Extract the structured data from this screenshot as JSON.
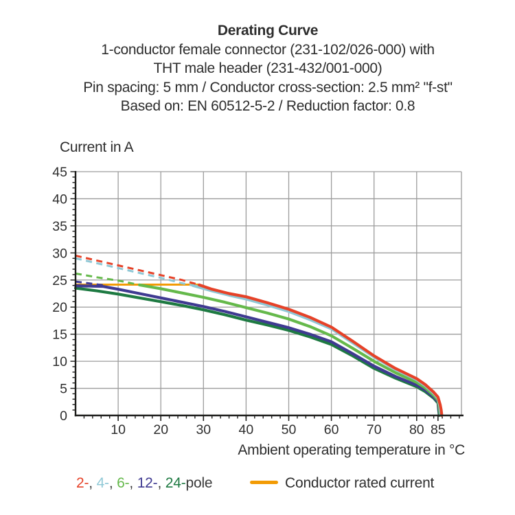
{
  "header": {
    "title": "Derating Curve",
    "subtitle_lines": [
      "1-conductor female connector (231-102/026-000) with",
      "THT male header (231-432/001-000)",
      "Pin spacing: 5 mm / Conductor cross-section: 2.5 mm² \"f-st\"",
      "Based on: EN 60512-5-2 / Reduction factor: 0.8"
    ]
  },
  "chart_data": {
    "type": "line",
    "title": "Derating Curve",
    "ylabel": "Current in A",
    "xlabel": "Ambient operating temperature in °C",
    "xlim": [
      0,
      90.5
    ],
    "ylim": [
      0,
      45
    ],
    "grid": true,
    "grid_color": "#9c9c9c",
    "axis_color": "#1d1d1b",
    "tick_label_color": "#2e2e2e",
    "x_major_ticks": [
      10,
      20,
      30,
      40,
      50,
      60,
      70,
      80,
      85
    ],
    "x_gridlines": [
      10,
      20,
      30,
      40,
      50,
      60,
      70,
      80
    ],
    "x_minor_step": 2,
    "y_major_ticks": [
      0,
      5,
      10,
      15,
      20,
      25,
      30,
      35,
      40,
      45
    ],
    "y_minor_step": 1,
    "legend_position": "bottom",
    "note": "dashed segments show curve portion above conductor rated current; solid below",
    "rated_current_line": {
      "name": "Conductor rated current",
      "color": "#f29b05",
      "value_A": 24.1,
      "points": [
        [
          0,
          24.15
        ],
        [
          29,
          24.15
        ]
      ]
    },
    "series": [
      {
        "name": "2-pole",
        "color": "#e64228",
        "dashed_points": [
          [
            0,
            29.5
          ],
          [
            5,
            28.6
          ],
          [
            10,
            27.7
          ],
          [
            15,
            26.8
          ],
          [
            20,
            25.9
          ],
          [
            25,
            25.0
          ],
          [
            29,
            24.1
          ]
        ],
        "solid_points": [
          [
            29,
            24.1
          ],
          [
            32,
            23.3
          ],
          [
            36,
            22.5
          ],
          [
            40,
            21.9
          ],
          [
            45,
            20.8
          ],
          [
            50,
            19.6
          ],
          [
            55,
            18.1
          ],
          [
            60,
            16.3
          ],
          [
            65,
            13.7
          ],
          [
            70,
            11.0
          ],
          [
            75,
            8.7
          ],
          [
            80,
            6.8
          ],
          [
            82,
            5.7
          ],
          [
            84,
            4.3
          ],
          [
            85,
            3.4
          ],
          [
            85.5,
            2.0
          ],
          [
            85.75,
            1.0
          ],
          [
            85.9,
            0
          ]
        ]
      },
      {
        "name": "4-pole",
        "color": "#8fc8d6",
        "dashed_points": [
          [
            0,
            29.0
          ],
          [
            5,
            28.1
          ],
          [
            10,
            27.2
          ],
          [
            15,
            26.3
          ],
          [
            20,
            25.4
          ],
          [
            25,
            24.4
          ],
          [
            27.5,
            24.0
          ]
        ],
        "solid_points": [
          [
            27.5,
            24.0
          ],
          [
            32,
            23.0
          ],
          [
            36,
            22.2
          ],
          [
            40,
            21.5
          ],
          [
            45,
            20.4
          ],
          [
            50,
            19.2
          ],
          [
            55,
            17.7
          ],
          [
            60,
            16.0
          ],
          [
            65,
            13.4
          ],
          [
            70,
            10.8
          ],
          [
            75,
            8.5
          ],
          [
            80,
            6.6
          ],
          [
            82,
            5.5
          ],
          [
            84,
            4.1
          ],
          [
            85,
            3.2
          ],
          [
            85.4,
            1.8
          ],
          [
            85.7,
            0
          ]
        ]
      },
      {
        "name": "6-pole",
        "color": "#65b94b",
        "dashed_points": [
          [
            0,
            26.2
          ],
          [
            5,
            25.5
          ],
          [
            10,
            24.9
          ],
          [
            15,
            24.1
          ]
        ],
        "solid_points": [
          [
            15,
            24.1
          ],
          [
            20,
            23.4
          ],
          [
            25,
            22.6
          ],
          [
            30,
            21.8
          ],
          [
            35,
            20.9
          ],
          [
            40,
            19.9
          ],
          [
            45,
            18.9
          ],
          [
            50,
            17.8
          ],
          [
            55,
            16.4
          ],
          [
            60,
            14.7
          ],
          [
            65,
            12.4
          ],
          [
            70,
            10.0
          ],
          [
            75,
            7.9
          ],
          [
            80,
            6.1
          ],
          [
            82,
            5.1
          ],
          [
            84,
            3.7
          ],
          [
            85,
            2.8
          ],
          [
            85.3,
            1.4
          ],
          [
            85.5,
            0
          ]
        ]
      },
      {
        "name": "12-pole",
        "color": "#3f3a91",
        "dashed_points": [
          [
            0,
            24.7
          ],
          [
            3,
            24.4
          ],
          [
            6.5,
            24.05
          ]
        ],
        "solid_points": [
          [
            0,
            23.95
          ],
          [
            6.5,
            23.8
          ],
          [
            10,
            23.3
          ],
          [
            15,
            22.5
          ],
          [
            20,
            21.7
          ],
          [
            25,
            20.9
          ],
          [
            30,
            20.1
          ],
          [
            35,
            19.2
          ],
          [
            40,
            18.2
          ],
          [
            45,
            17.2
          ],
          [
            50,
            16.2
          ],
          [
            55,
            15.0
          ],
          [
            60,
            13.6
          ],
          [
            65,
            11.4
          ],
          [
            70,
            9.1
          ],
          [
            75,
            7.2
          ],
          [
            80,
            5.6
          ],
          [
            82,
            4.7
          ],
          [
            84,
            3.4
          ],
          [
            85,
            2.5
          ],
          [
            85.2,
            1.2
          ],
          [
            85.4,
            0
          ]
        ]
      },
      {
        "name": "24-pole",
        "color": "#1e7a42",
        "dashed_points": [],
        "solid_points": [
          [
            0,
            23.5
          ],
          [
            5,
            23.0
          ],
          [
            10,
            22.4
          ],
          [
            15,
            21.7
          ],
          [
            20,
            21.0
          ],
          [
            25,
            20.3
          ],
          [
            30,
            19.5
          ],
          [
            35,
            18.6
          ],
          [
            40,
            17.6
          ],
          [
            45,
            16.7
          ],
          [
            50,
            15.7
          ],
          [
            55,
            14.5
          ],
          [
            60,
            13.1
          ],
          [
            65,
            11.0
          ],
          [
            70,
            8.7
          ],
          [
            75,
            6.9
          ],
          [
            80,
            5.3
          ],
          [
            82,
            4.4
          ],
          [
            84,
            3.2
          ],
          [
            85,
            2.3
          ],
          [
            85.15,
            1.0
          ],
          [
            85.3,
            0
          ]
        ]
      }
    ]
  },
  "legend": {
    "pole_items": [
      {
        "label": "2-",
        "color": "#e64228"
      },
      {
        "label": "4-",
        "color": "#8fc8d6"
      },
      {
        "label": "6-",
        "color": "#65b94b"
      },
      {
        "label": "12-",
        "color": "#3f3a91"
      },
      {
        "label": "24-",
        "color": "#1e7a42"
      }
    ],
    "separator": ", ",
    "pole_suffix": "pole",
    "suffix_color": "#3a3a3a",
    "rated_label": "Conductor rated current",
    "rated_color": "#f29b05"
  }
}
